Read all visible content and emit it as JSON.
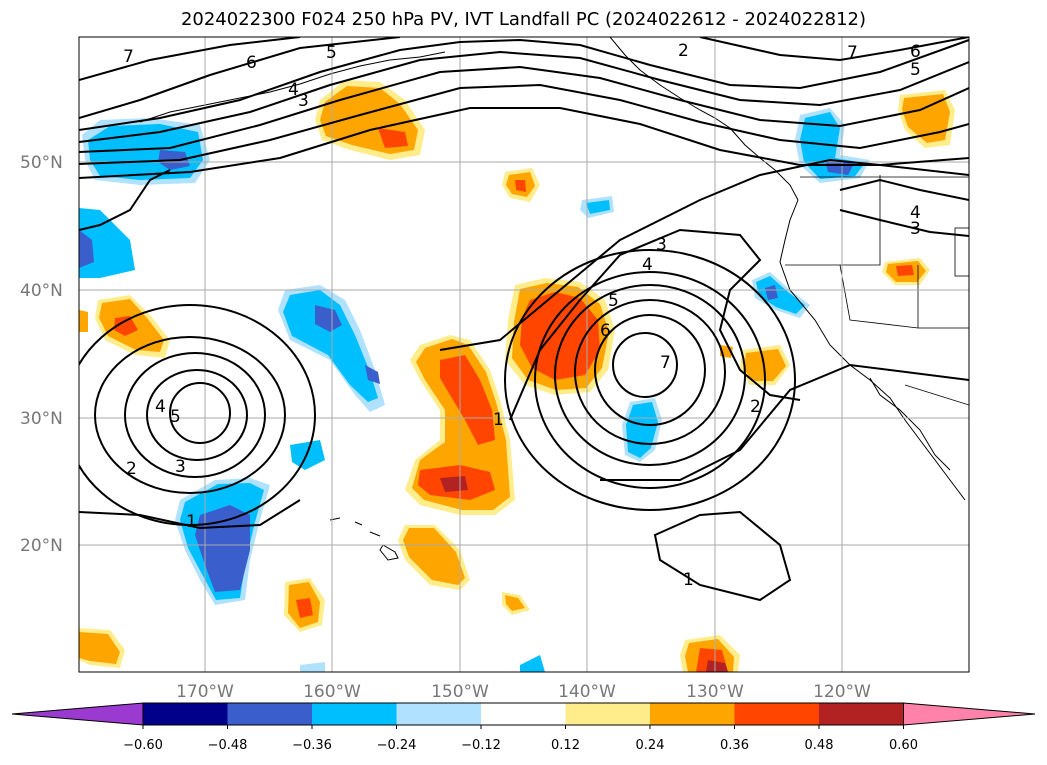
{
  "title": "2024022300 F024 250 hPa PV, IVT Landfall PC (2024022612 - 2024022812)",
  "lat_labels": [
    "50°N",
    "40°N",
    "30°N",
    "20°N"
  ],
  "lon_labels": [
    "170°W",
    "160°W",
    "150°W",
    "140°W",
    "130°W",
    "120°W"
  ],
  "colorbar": {
    "tick_labels": [
      "−0.60",
      "−0.48",
      "−0.36",
      "−0.24",
      "−0.12",
      "0.12",
      "0.24",
      "0.36",
      "0.48",
      "0.60"
    ],
    "colors": [
      "#9a3ad0",
      "#00008b",
      "#3a5fcd",
      "#00bfff",
      "#b0e2ff",
      "#ffffff",
      "#ffec8b",
      "#ffa500",
      "#ff4500",
      "#b22222",
      "#ff82ab"
    ]
  },
  "contour_labels": [
    "7",
    "6",
    "5",
    "4",
    "3",
    "7",
    "6",
    "5",
    "4",
    "3",
    "5",
    "4",
    "3",
    "2",
    "1",
    "1",
    "2",
    "3",
    "4",
    "5",
    "6",
    "7",
    "2",
    "1"
  ],
  "colors": {
    "shade_blue_light": "#b0e2ff",
    "shade_blue": "#00bfff",
    "shade_blue_dark": "#3a5fcd",
    "shade_yellow": "#ffec8b",
    "shade_orange": "#ffa500",
    "shade_red": "#ff4500",
    "shade_darkred": "#b22222"
  }
}
